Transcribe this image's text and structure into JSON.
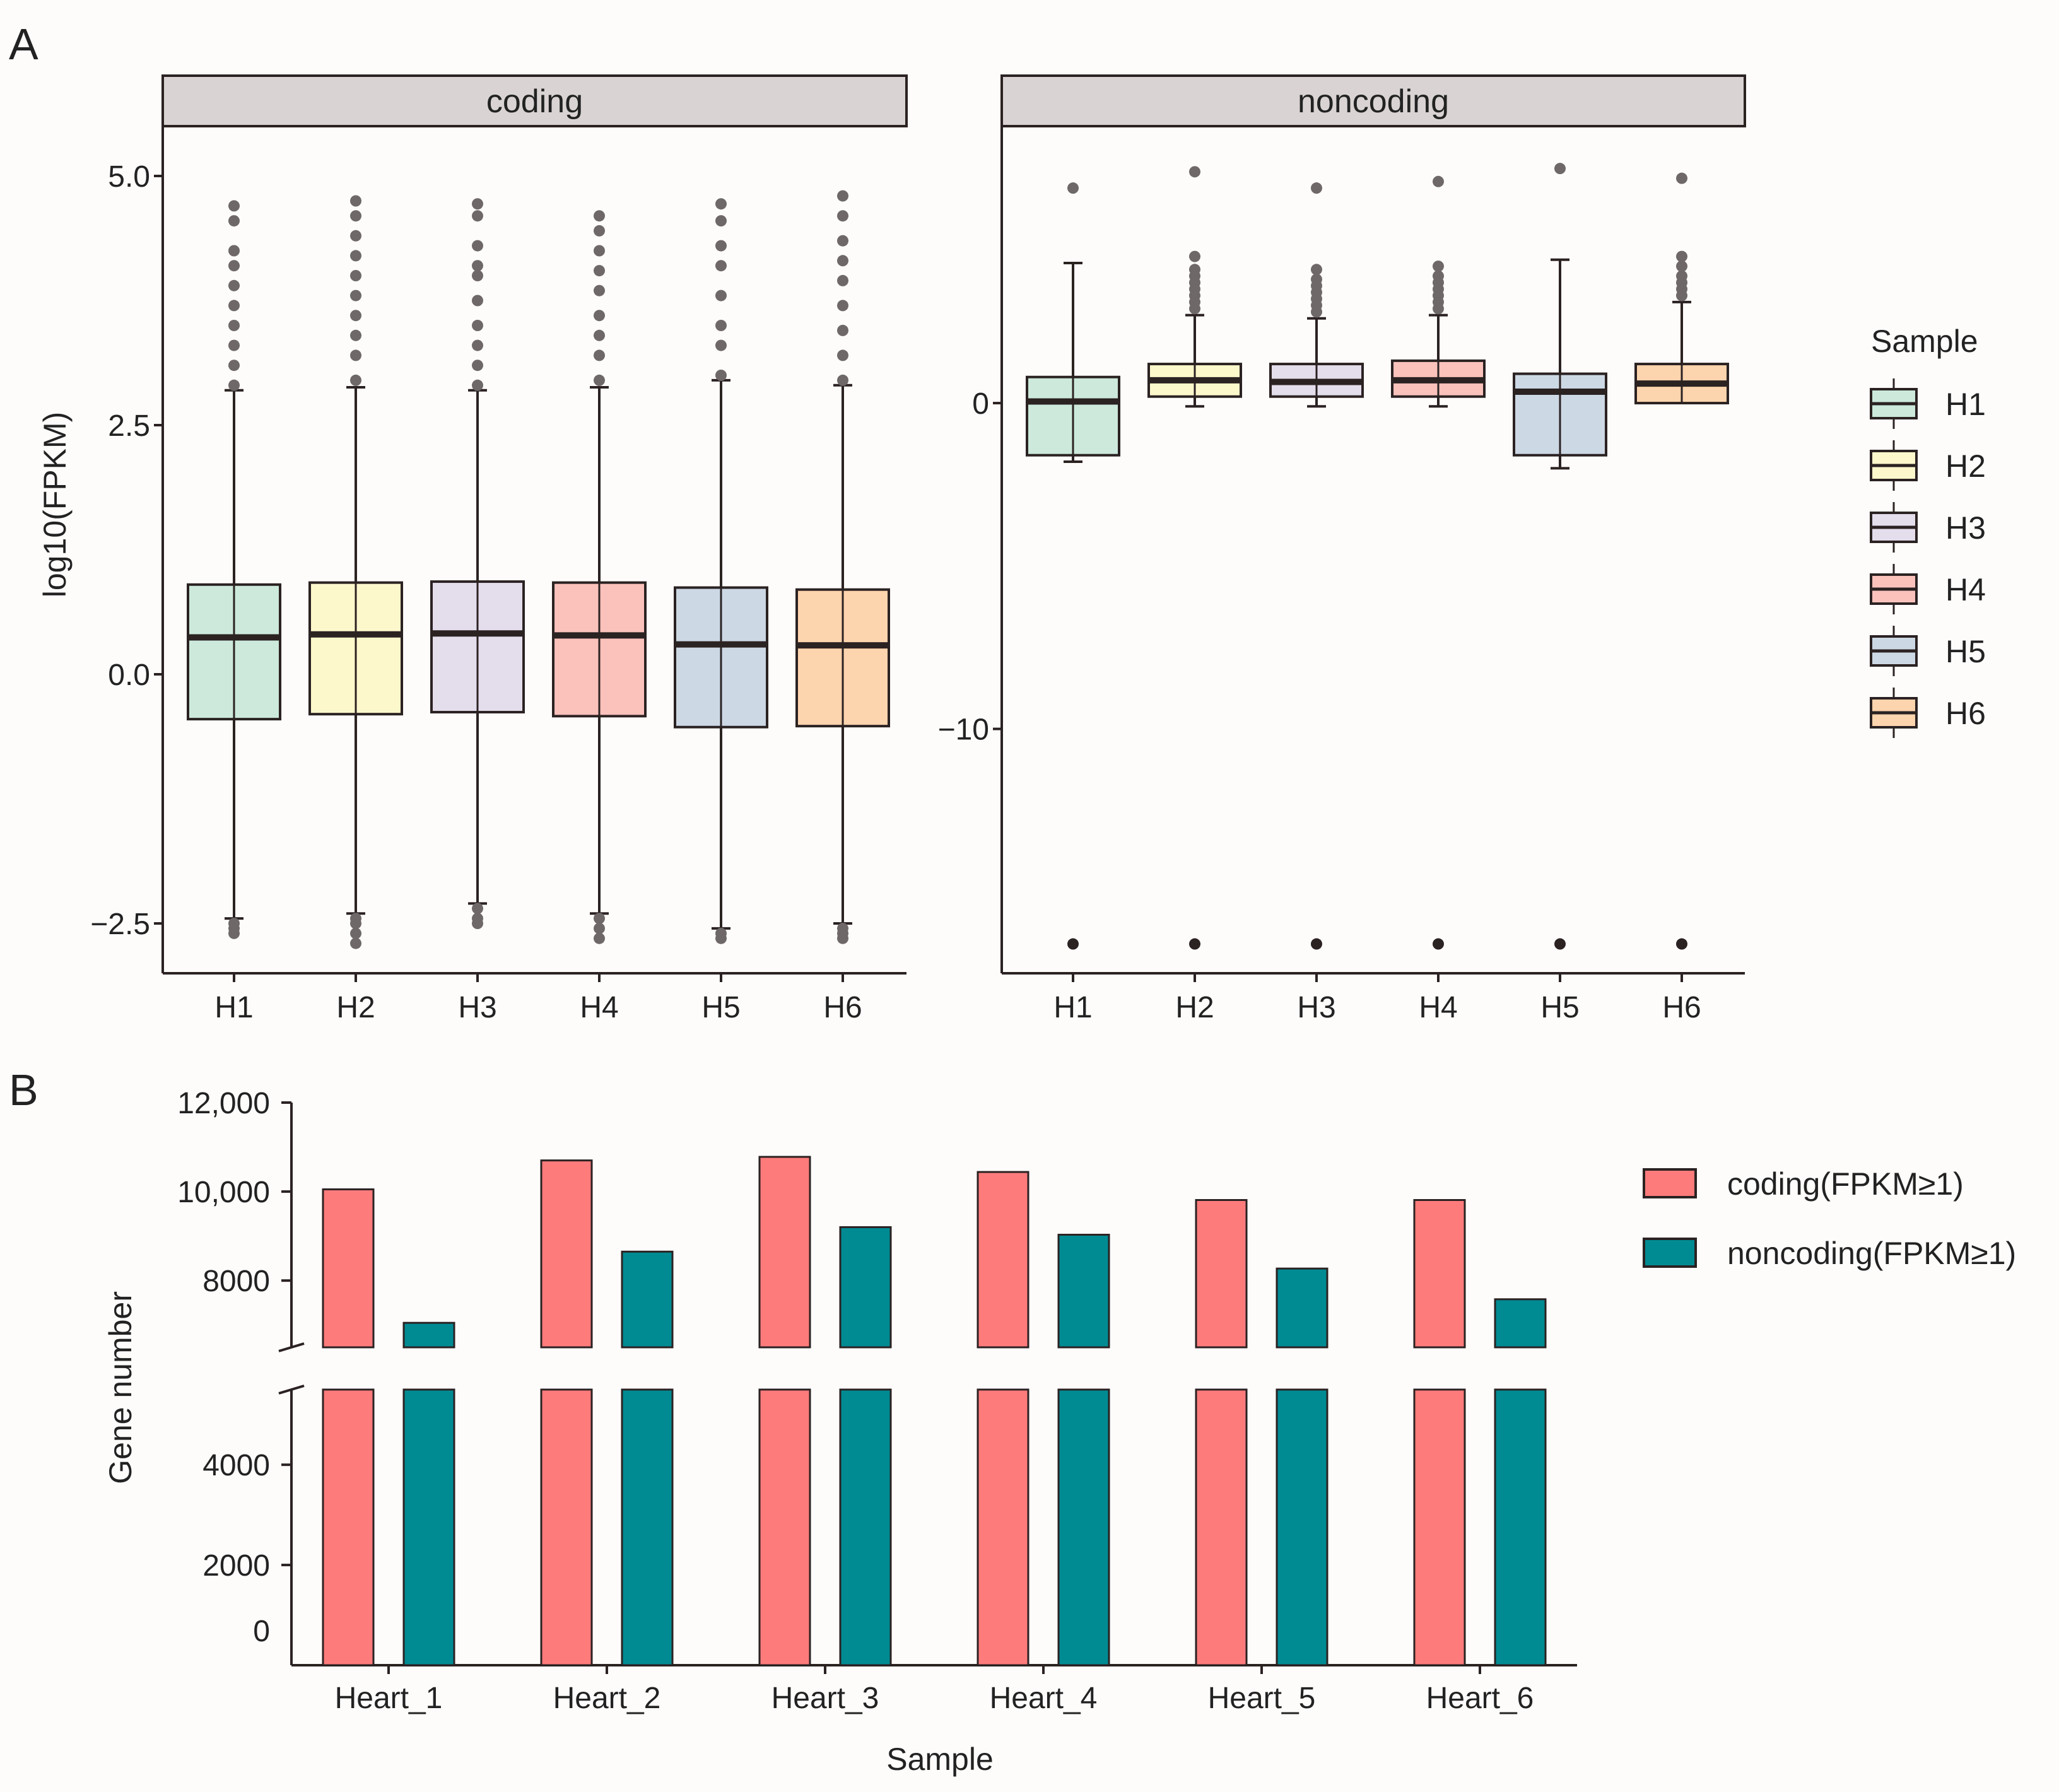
{
  "panels": {
    "a_label": "A",
    "b_label": "B"
  },
  "chart_data": [
    {
      "type": "boxplot",
      "facet": "coding",
      "ylabel": "log10(FPKM)",
      "ylim": [
        -3.0,
        5.5
      ],
      "yticks": [
        5.0,
        2.5,
        0.0,
        -2.5
      ],
      "ytick_labels": [
        "5.0",
        "2.5",
        "0.0",
        "−2.5"
      ],
      "categories": [
        "H1",
        "H2",
        "H3",
        "H4",
        "H5",
        "H6"
      ],
      "boxes": [
        {
          "sample": "H1",
          "q1": -0.45,
          "median": 0.37,
          "q3": 0.9,
          "whisker_low": -2.45,
          "whisker_high": 2.85,
          "outliers_high": [
            2.9,
            3.1,
            3.3,
            3.5,
            3.7,
            3.9,
            4.1,
            4.25,
            4.55,
            4.7
          ],
          "outliers_low": [
            -2.5,
            -2.55,
            -2.6
          ]
        },
        {
          "sample": "H2",
          "q1": -0.4,
          "median": 0.4,
          "q3": 0.92,
          "whisker_low": -2.4,
          "whisker_high": 2.88,
          "outliers_high": [
            2.95,
            3.2,
            3.4,
            3.6,
            3.8,
            4.0,
            4.2,
            4.4,
            4.6,
            4.75
          ],
          "outliers_low": [
            -2.45,
            -2.5,
            -2.6,
            -2.7
          ]
        },
        {
          "sample": "H3",
          "q1": -0.38,
          "median": 0.41,
          "q3": 0.93,
          "whisker_low": -2.3,
          "whisker_high": 2.85,
          "outliers_high": [
            2.9,
            3.1,
            3.3,
            3.5,
            3.75,
            4.0,
            4.1,
            4.3,
            4.6,
            4.72
          ],
          "outliers_low": [
            -2.35,
            -2.45,
            -2.5
          ]
        },
        {
          "sample": "H4",
          "q1": -0.42,
          "median": 0.39,
          "q3": 0.92,
          "whisker_low": -2.4,
          "whisker_high": 2.88,
          "outliers_high": [
            2.95,
            3.2,
            3.4,
            3.6,
            3.85,
            4.05,
            4.25,
            4.45,
            4.6
          ],
          "outliers_low": [
            -2.45,
            -2.55,
            -2.65
          ]
        },
        {
          "sample": "H5",
          "q1": -0.53,
          "median": 0.3,
          "q3": 0.87,
          "whisker_low": -2.55,
          "whisker_high": 2.95,
          "outliers_high": [
            3.0,
            3.3,
            3.5,
            3.8,
            4.1,
            4.3,
            4.55,
            4.72
          ],
          "outliers_low": [
            -2.6,
            -2.65
          ]
        },
        {
          "sample": "H6",
          "q1": -0.52,
          "median": 0.29,
          "q3": 0.85,
          "whisker_low": -2.5,
          "whisker_high": 2.9,
          "outliers_high": [
            2.95,
            3.2,
            3.45,
            3.7,
            3.95,
            4.15,
            4.35,
            4.6,
            4.8
          ],
          "outliers_low": [
            -2.55,
            -2.6,
            -2.65
          ]
        }
      ]
    },
    {
      "type": "boxplot",
      "facet": "noncoding",
      "ylim": [
        -17.5,
        8.5
      ],
      "yticks": [
        0,
        -10
      ],
      "ytick_labels": [
        "0",
        "−10"
      ],
      "categories": [
        "H1",
        "H2",
        "H3",
        "H4",
        "H5",
        "H6"
      ],
      "boxes": [
        {
          "sample": "H1",
          "q1": -1.6,
          "median": 0.05,
          "q3": 0.8,
          "whisker_low": -1.8,
          "whisker_high": 4.3,
          "outliers_high": [
            6.6
          ],
          "outliers_low": [
            -16.6
          ]
        },
        {
          "sample": "H2",
          "q1": 0.2,
          "median": 0.7,
          "q3": 1.2,
          "whisker_low": -0.1,
          "whisker_high": 2.7,
          "outliers_high": [
            2.9,
            3.1,
            3.3,
            3.5,
            3.7,
            3.9,
            4.1,
            4.5,
            7.1
          ],
          "outliers_low": [
            -16.6
          ]
        },
        {
          "sample": "H3",
          "q1": 0.2,
          "median": 0.65,
          "q3": 1.2,
          "whisker_low": -0.1,
          "whisker_high": 2.6,
          "outliers_high": [
            2.8,
            3.0,
            3.2,
            3.4,
            3.6,
            3.8,
            4.1,
            6.6
          ],
          "outliers_low": [
            -16.6
          ]
        },
        {
          "sample": "H4",
          "q1": 0.2,
          "median": 0.7,
          "q3": 1.3,
          "whisker_low": -0.1,
          "whisker_high": 2.7,
          "outliers_high": [
            2.9,
            3.1,
            3.3,
            3.5,
            3.7,
            3.9,
            4.2,
            6.8
          ],
          "outliers_low": [
            -16.6
          ]
        },
        {
          "sample": "H5",
          "q1": -1.6,
          "median": 0.35,
          "q3": 0.9,
          "whisker_low": -2.0,
          "whisker_high": 4.4,
          "outliers_high": [
            7.2
          ],
          "outliers_low": [
            -16.6
          ]
        },
        {
          "sample": "H6",
          "q1": 0.0,
          "median": 0.6,
          "q3": 1.2,
          "whisker_low": 0.0,
          "whisker_high": 3.1,
          "outliers_high": [
            3.3,
            3.5,
            3.7,
            3.9,
            4.2,
            4.5,
            6.9
          ],
          "outliers_low": [
            -16.6
          ]
        }
      ]
    },
    {
      "type": "bar",
      "panel": "B",
      "xlabel": "Sample",
      "ylabel": "Gene number",
      "categories": [
        "Heart_1",
        "Heart_2",
        "Heart_3",
        "Heart_4",
        "Heart_5",
        "Heart_6"
      ],
      "series": [
        {
          "name": "coding(FPKM≥1)",
          "values": [
            10050,
            10700,
            10780,
            10440,
            9810,
            9810
          ]
        },
        {
          "name": "noncoding(FPKM≥1)",
          "values": [
            7050,
            8650,
            9200,
            9030,
            8270,
            7580
          ]
        }
      ],
      "axis_break": [
        5500,
        6500
      ],
      "lower_range": [
        0,
        5500
      ],
      "upper_range": [
        6500,
        12000
      ],
      "yticks_lower": [
        0,
        2000,
        4000
      ],
      "ytick_labels_lower": [
        "0",
        "2000",
        "4000"
      ],
      "yticks_upper": [
        8000,
        10000,
        12000
      ],
      "ytick_labels_upper": [
        "8000",
        "10,000",
        "12,000"
      ]
    }
  ],
  "legend_a": {
    "title": "Sample",
    "items": [
      {
        "label": "H1",
        "color": "#cce9dc"
      },
      {
        "label": "H2",
        "color": "#fdf8cc"
      },
      {
        "label": "H3",
        "color": "#e3ddec"
      },
      {
        "label": "H4",
        "color": "#fbc2bc"
      },
      {
        "label": "H5",
        "color": "#ccd8e4"
      },
      {
        "label": "H6",
        "color": "#fcd4ad"
      }
    ]
  },
  "colors": {
    "coding_bar": "#fe7b7c",
    "noncoding_bar": "#008b93",
    "strip_fill": "#d9d4d3",
    "line": "#2b2222",
    "outlier": "#6e6868",
    "background": "#fefcfb"
  }
}
